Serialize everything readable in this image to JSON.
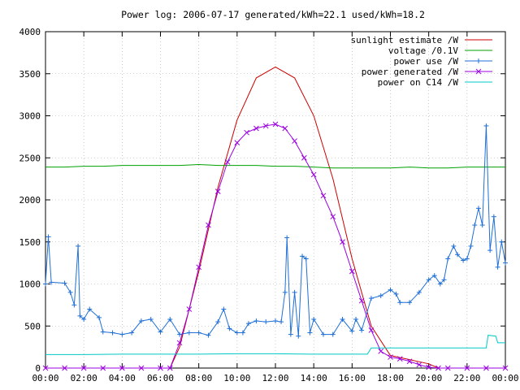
{
  "chart_data": {
    "type": "line",
    "title": "Power log: 2006-07-17 generated/kWh=22.1 used/kWh=18.2",
    "xlabel": "",
    "ylabel": "",
    "xlim": [
      0,
      24
    ],
    "ylim": [
      0,
      4000
    ],
    "grid": true,
    "legend_placement": "top-right",
    "x_ticks": [
      "00:00",
      "02:00",
      "04:00",
      "06:00",
      "08:00",
      "10:00",
      "12:00",
      "14:00",
      "16:00",
      "18:00",
      "20:00",
      "22:00",
      "00:00"
    ],
    "y_ticks": [
      0,
      500,
      1000,
      1500,
      2000,
      2500,
      3000,
      3500,
      4000
    ],
    "series": [
      {
        "name": "sunlight estimate /W",
        "color": "#cc0000",
        "style": "line",
        "points": [
          [
            6.5,
            0
          ],
          [
            7,
            250
          ],
          [
            8,
            1150
          ],
          [
            9,
            2150
          ],
          [
            10,
            2950
          ],
          [
            11,
            3450
          ],
          [
            12,
            3580
          ],
          [
            13,
            3450
          ],
          [
            14,
            3000
          ],
          [
            15,
            2250
          ],
          [
            16,
            1300
          ],
          [
            17,
            500
          ],
          [
            18,
            150
          ],
          [
            19,
            100
          ],
          [
            20,
            50
          ],
          [
            20.5,
            0
          ]
        ]
      },
      {
        "name": "voltage /0.1V",
        "color": "#00a000",
        "style": "line",
        "points": [
          [
            0,
            2390
          ],
          [
            1,
            2390
          ],
          [
            2,
            2400
          ],
          [
            3,
            2400
          ],
          [
            4,
            2410
          ],
          [
            5,
            2410
          ],
          [
            6,
            2410
          ],
          [
            7,
            2410
          ],
          [
            8,
            2420
          ],
          [
            9,
            2410
          ],
          [
            10,
            2410
          ],
          [
            11,
            2410
          ],
          [
            12,
            2400
          ],
          [
            13,
            2400
          ],
          [
            14,
            2390
          ],
          [
            15,
            2380
          ],
          [
            16,
            2380
          ],
          [
            17,
            2380
          ],
          [
            18,
            2380
          ],
          [
            19,
            2390
          ],
          [
            20,
            2380
          ],
          [
            21,
            2380
          ],
          [
            22,
            2390
          ],
          [
            23,
            2390
          ],
          [
            24,
            2390
          ]
        ]
      },
      {
        "name": "power use /W",
        "color": "#1f6fd6",
        "style": "linepoints",
        "points": [
          [
            0,
            1000
          ],
          [
            0.15,
            1560
          ],
          [
            0.3,
            1020
          ],
          [
            1,
            1010
          ],
          [
            1.3,
            900
          ],
          [
            1.5,
            750
          ],
          [
            1.7,
            1450
          ],
          [
            1.8,
            620
          ],
          [
            2,
            580
          ],
          [
            2.3,
            700
          ],
          [
            2.8,
            600
          ],
          [
            3,
            430
          ],
          [
            3.5,
            420
          ],
          [
            4,
            400
          ],
          [
            4.5,
            420
          ],
          [
            5,
            560
          ],
          [
            5.5,
            580
          ],
          [
            6,
            430
          ],
          [
            6.5,
            580
          ],
          [
            7,
            400
          ],
          [
            7.5,
            420
          ],
          [
            8,
            420
          ],
          [
            8.5,
            390
          ],
          [
            9,
            550
          ],
          [
            9.3,
            700
          ],
          [
            9.6,
            470
          ],
          [
            10,
            420
          ],
          [
            10.3,
            420
          ],
          [
            10.6,
            530
          ],
          [
            11,
            560
          ],
          [
            11.5,
            550
          ],
          [
            12,
            560
          ],
          [
            12.3,
            550
          ],
          [
            12.5,
            900
          ],
          [
            12.6,
            1550
          ],
          [
            12.8,
            400
          ],
          [
            13,
            900
          ],
          [
            13.2,
            380
          ],
          [
            13.4,
            1330
          ],
          [
            13.6,
            1300
          ],
          [
            13.8,
            420
          ],
          [
            14,
            580
          ],
          [
            14.5,
            400
          ],
          [
            15,
            400
          ],
          [
            15.5,
            580
          ],
          [
            16,
            440
          ],
          [
            16.2,
            580
          ],
          [
            16.5,
            450
          ],
          [
            17,
            830
          ],
          [
            17.5,
            860
          ],
          [
            18,
            930
          ],
          [
            18.3,
            880
          ],
          [
            18.5,
            780
          ],
          [
            19,
            780
          ],
          [
            19.5,
            900
          ],
          [
            20,
            1050
          ],
          [
            20.3,
            1100
          ],
          [
            20.6,
            1000
          ],
          [
            20.8,
            1050
          ],
          [
            21,
            1300
          ],
          [
            21.3,
            1450
          ],
          [
            21.5,
            1350
          ],
          [
            21.8,
            1280
          ],
          [
            22,
            1300
          ],
          [
            22.2,
            1450
          ],
          [
            22.4,
            1700
          ],
          [
            22.6,
            1900
          ],
          [
            22.8,
            1700
          ],
          [
            23,
            2880
          ],
          [
            23.2,
            1400
          ],
          [
            23.4,
            1800
          ],
          [
            23.6,
            1200
          ],
          [
            23.8,
            1500
          ],
          [
            24,
            1250
          ]
        ]
      },
      {
        "name": "power generated /W",
        "color": "#9b00e0",
        "style": "linepoints",
        "points": [
          [
            0,
            0
          ],
          [
            1,
            0
          ],
          [
            2,
            0
          ],
          [
            3,
            0
          ],
          [
            4,
            0
          ],
          [
            5,
            0
          ],
          [
            6,
            0
          ],
          [
            6.5,
            0
          ],
          [
            7,
            300
          ],
          [
            7.5,
            700
          ],
          [
            8,
            1200
          ],
          [
            8.5,
            1700
          ],
          [
            9,
            2100
          ],
          [
            9.5,
            2450
          ],
          [
            10,
            2680
          ],
          [
            10.5,
            2800
          ],
          [
            11,
            2850
          ],
          [
            11.5,
            2880
          ],
          [
            12,
            2900
          ],
          [
            12.5,
            2850
          ],
          [
            13,
            2700
          ],
          [
            13.5,
            2500
          ],
          [
            14,
            2300
          ],
          [
            14.5,
            2050
          ],
          [
            15,
            1800
          ],
          [
            15.5,
            1500
          ],
          [
            16,
            1150
          ],
          [
            16.5,
            800
          ],
          [
            17,
            450
          ],
          [
            17.5,
            200
          ],
          [
            18,
            130
          ],
          [
            18.5,
            110
          ],
          [
            19,
            80
          ],
          [
            19.5,
            40
          ],
          [
            20,
            10
          ],
          [
            20.5,
            0
          ],
          [
            21,
            0
          ],
          [
            22,
            0
          ],
          [
            23,
            0
          ],
          [
            24,
            0
          ]
        ]
      },
      {
        "name": "power on C14 /W",
        "color": "#00c8c8",
        "style": "line",
        "points": [
          [
            0,
            160
          ],
          [
            2,
            160
          ],
          [
            4,
            165
          ],
          [
            6,
            165
          ],
          [
            8,
            165
          ],
          [
            10,
            170
          ],
          [
            12,
            170
          ],
          [
            14,
            165
          ],
          [
            16,
            165
          ],
          [
            16.8,
            165
          ],
          [
            17,
            240
          ],
          [
            18,
            240
          ],
          [
            19,
            240
          ],
          [
            20,
            240
          ],
          [
            21,
            240
          ],
          [
            22,
            240
          ],
          [
            23,
            240
          ],
          [
            23.1,
            390
          ],
          [
            23.5,
            380
          ],
          [
            23.6,
            300
          ],
          [
            24,
            300
          ]
        ]
      }
    ]
  }
}
